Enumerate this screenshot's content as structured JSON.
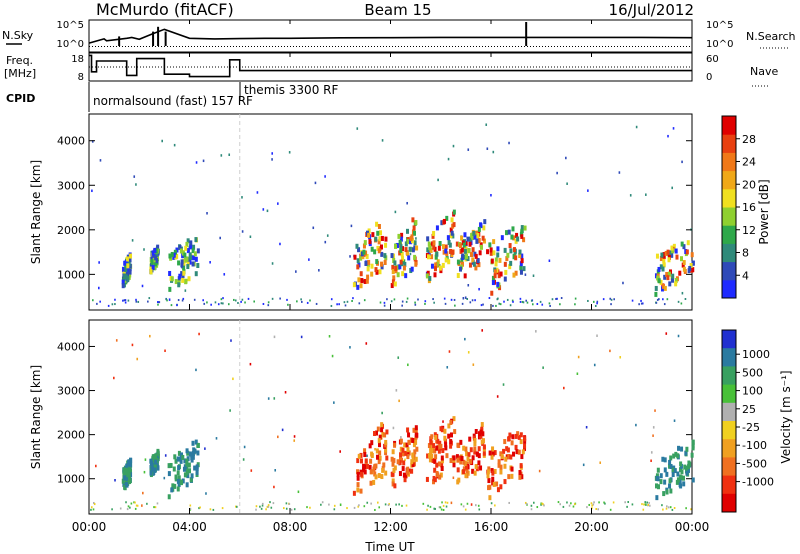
{
  "header": {
    "station": "McMurdo (fitACF)",
    "beam": "Beam 15",
    "date": "16/Jul/2012"
  },
  "left_labels": {
    "nsky": "N.Sky",
    "freq_line1": "Freq.",
    "freq_line2": "[MHz]",
    "cpid": "CPID"
  },
  "right_labels": {
    "nsearch": "N.Search",
    "nave": "Nave"
  },
  "cpid": {
    "mode1": "normalsound (fast) 157 RF",
    "mode2": "themis 3300 RF"
  },
  "chart_data": [
    {
      "type": "line",
      "name": "noise-panel",
      "series": [
        {
          "name": "N.Sky",
          "x": [
            0,
            0.6,
            0.7,
            1.5,
            1.7,
            2,
            2.5,
            3,
            4,
            5,
            6,
            7,
            8,
            10,
            12,
            14,
            16,
            18,
            20,
            22,
            24
          ],
          "y": [
            4,
            30,
            12,
            40,
            60,
            25,
            300,
            3000,
            40,
            30,
            35,
            40,
            40,
            50,
            55,
            60,
            60,
            60,
            60,
            60,
            55
          ]
        },
        {
          "name": "N.Search",
          "x": [
            0,
            2,
            4,
            6,
            8,
            12,
            16,
            20,
            24
          ],
          "y": [
            2,
            2,
            2,
            2,
            2,
            2,
            2,
            2,
            2
          ]
        }
      ],
      "ylabels": [
        "10^5",
        "10^0"
      ],
      "yticks_right": [
        "10^5",
        "10^0"
      ]
    },
    {
      "type": "line",
      "name": "freq-nave-panel",
      "series": [
        {
          "name": "Freq",
          "x": [
            0,
            0.1,
            0.3,
            1.1,
            1.5,
            1.9,
            2.5,
            3,
            4,
            5.2,
            5.6,
            6,
            24
          ],
          "y": [
            17.8,
            11,
            15.5,
            15.5,
            9.5,
            16.5,
            16.5,
            10,
            9,
            9,
            16,
            11.5,
            11.5
          ]
        },
        {
          "name": "Nave",
          "x": [
            0,
            6,
            24
          ],
          "y": [
            30,
            30,
            30
          ]
        }
      ],
      "ylabels": [
        "18",
        "8"
      ],
      "yticks_right": [
        "60",
        "0"
      ]
    },
    {
      "type": "heatmap",
      "name": "power-panel",
      "ylabel": "Slant Range [km]",
      "yticks": [
        "1000",
        "2000",
        "3000",
        "4000"
      ],
      "ylim": [
        200,
        4600
      ],
      "colorbar_label": "Power [dB]",
      "colorbar_ticks": [
        "4",
        "8",
        "12",
        "16",
        "20",
        "24",
        "28"
      ],
      "colorbar_colors": [
        "#1f2bff",
        "#2f4ab8",
        "#2f8a7a",
        "#2ea84a",
        "#8fd030",
        "#f0e020",
        "#f0a818",
        "#f07818",
        "#e84010",
        "#e00000"
      ],
      "echo_patches": [
        {
          "t0": 1.3,
          "t1": 1.6,
          "r0": 900,
          "r1": 1400,
          "v": "mid"
        },
        {
          "t0": 2.4,
          "t1": 2.7,
          "r0": 1200,
          "r1": 1600,
          "v": "mid"
        },
        {
          "t0": 3.1,
          "t1": 4.3,
          "r0": 850,
          "r1": 1750,
          "v": "mid"
        },
        {
          "t0": 10.5,
          "t1": 11.8,
          "r0": 900,
          "r1": 2100,
          "v": "high"
        },
        {
          "t0": 12.0,
          "t1": 13.0,
          "r0": 1000,
          "r1": 2100,
          "v": "high"
        },
        {
          "t0": 13.4,
          "t1": 14.5,
          "r0": 1100,
          "r1": 2200,
          "v": "high"
        },
        {
          "t0": 14.6,
          "t1": 15.7,
          "r0": 1100,
          "r1": 2100,
          "v": "high"
        },
        {
          "t0": 15.8,
          "t1": 17.3,
          "r0": 850,
          "r1": 2000,
          "v": "high"
        },
        {
          "t0": 22.5,
          "t1": 24.0,
          "r0": 800,
          "r1": 1700,
          "v": "high"
        }
      ]
    },
    {
      "type": "heatmap",
      "name": "velocity-panel",
      "ylabel": "Slant Range [km]",
      "yticks": [
        "1000",
        "2000",
        "3000",
        "4000"
      ],
      "ylim": [
        200,
        4600
      ],
      "colorbar_label": "Velocity [m s⁻¹]",
      "colorbar_ticks": [
        "1000",
        "500",
        "100",
        "25",
        "-25",
        "-100",
        "-500",
        "-1000"
      ],
      "colorbar_colors": [
        "#2030d0",
        "#2a7aa0",
        "#38a060",
        "#48c038",
        "#b0b0b0",
        "#f0d020",
        "#f0a020",
        "#f07020",
        "#f03010",
        "#e00000"
      ],
      "echo_patches": [
        {
          "t0": 1.3,
          "t1": 1.6,
          "r0": 900,
          "r1": 1400,
          "v": "pos"
        },
        {
          "t0": 2.4,
          "t1": 2.7,
          "r0": 1200,
          "r1": 1600,
          "v": "pos"
        },
        {
          "t0": 3.1,
          "t1": 4.3,
          "r0": 850,
          "r1": 1750,
          "v": "pos"
        },
        {
          "t0": 10.5,
          "t1": 11.8,
          "r0": 900,
          "r1": 2100,
          "v": "neg"
        },
        {
          "t0": 12.0,
          "t1": 13.0,
          "r0": 1000,
          "r1": 2100,
          "v": "neg"
        },
        {
          "t0": 13.4,
          "t1": 14.5,
          "r0": 1100,
          "r1": 2200,
          "v": "neg"
        },
        {
          "t0": 14.6,
          "t1": 15.7,
          "r0": 1100,
          "r1": 2100,
          "v": "neg"
        },
        {
          "t0": 15.8,
          "t1": 17.3,
          "r0": 850,
          "r1": 2000,
          "v": "neg"
        },
        {
          "t0": 22.5,
          "t1": 24.0,
          "r0": 800,
          "r1": 1700,
          "v": "pos"
        }
      ]
    }
  ],
  "xaxis": {
    "label": "Time UT",
    "ticks": [
      "00:00",
      "04:00",
      "08:00",
      "12:00",
      "16:00",
      "20:00",
      "00:00"
    ],
    "range_hours": [
      0,
      24
    ]
  }
}
